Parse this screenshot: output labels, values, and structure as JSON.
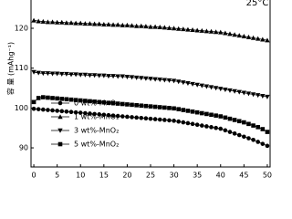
{
  "chart_data": {
    "type": "line",
    "annotation": "25°C",
    "ylabel": "容 量  (mAhg⁻¹)",
    "x": [
      0,
      1,
      2,
      3,
      4,
      5,
      6,
      7,
      8,
      9,
      10,
      11,
      12,
      13,
      14,
      15,
      16,
      17,
      18,
      19,
      20,
      21,
      22,
      23,
      24,
      25,
      26,
      27,
      28,
      29,
      30,
      31,
      32,
      33,
      34,
      35,
      36,
      37,
      38,
      39,
      40,
      41,
      42,
      43,
      44,
      45,
      46,
      47,
      48,
      49,
      50
    ],
    "series": [
      {
        "name": "0 wt%-MnO₂",
        "color": "#000000",
        "marker": "circle",
        "values": [
          99.8,
          99.7,
          99.6,
          99.5,
          99.4,
          99.3,
          99.2,
          99.1,
          99.0,
          98.9,
          98.8,
          98.7,
          98.6,
          98.5,
          98.4,
          98.3,
          98.2,
          98.1,
          98.0,
          97.9,
          97.8,
          97.7,
          97.6,
          97.5,
          97.4,
          97.3,
          97.2,
          97.1,
          97.0,
          96.9,
          96.8,
          96.6,
          96.4,
          96.2,
          96.0,
          95.8,
          95.6,
          95.4,
          95.2,
          95.0,
          94.8,
          94.4,
          94.0,
          93.6,
          93.2,
          92.8,
          92.4,
          92.0,
          91.5,
          91.0,
          90.5
        ]
      },
      {
        "name": "1 wt%-MnO₂",
        "color": "#000000",
        "marker": "triangle-up",
        "values": [
          122.0,
          121.8,
          121.7,
          121.6,
          121.6,
          121.5,
          121.5,
          121.4,
          121.4,
          121.3,
          121.3,
          121.2,
          121.2,
          121.1,
          121.1,
          121.0,
          121.0,
          120.9,
          120.9,
          120.8,
          120.8,
          120.7,
          120.6,
          120.6,
          120.5,
          120.4,
          120.4,
          120.3,
          120.2,
          120.1,
          120.0,
          119.9,
          119.8,
          119.7,
          119.6,
          119.5,
          119.4,
          119.3,
          119.2,
          119.1,
          119.0,
          118.8,
          118.6,
          118.4,
          118.2,
          118.0,
          117.8,
          117.6,
          117.4,
          117.2,
          117.0
        ]
      },
      {
        "name": "3 wt%-MnO₂",
        "color": "#000000",
        "marker": "triangle-down",
        "values": [
          109.0,
          108.8,
          108.7,
          108.7,
          108.6,
          108.6,
          108.5,
          108.5,
          108.4,
          108.4,
          108.3,
          108.3,
          108.2,
          108.2,
          108.1,
          108.1,
          108.0,
          108.0,
          107.9,
          107.9,
          107.8,
          107.7,
          107.6,
          107.5,
          107.4,
          107.3,
          107.2,
          107.1,
          107.0,
          106.9,
          106.8,
          106.6,
          106.4,
          106.2,
          106.0,
          105.8,
          105.6,
          105.4,
          105.2,
          105.0,
          104.8,
          104.6,
          104.4,
          104.2,
          104.0,
          103.8,
          103.6,
          103.4,
          103.2,
          103.0,
          102.8
        ]
      },
      {
        "name": "5 wt%-MnO₂",
        "color": "#000000",
        "marker": "square",
        "values": [
          101.5,
          102.5,
          102.7,
          102.6,
          102.5,
          102.4,
          102.3,
          102.2,
          102.1,
          102.0,
          101.9,
          101.8,
          101.7,
          101.6,
          101.5,
          101.4,
          101.3,
          101.2,
          101.1,
          101.0,
          100.9,
          100.8,
          100.7,
          100.6,
          100.5,
          100.4,
          100.3,
          100.2,
          100.1,
          100.0,
          99.9,
          99.7,
          99.5,
          99.3,
          99.1,
          98.9,
          98.7,
          98.5,
          98.3,
          98.1,
          97.9,
          97.6,
          97.3,
          97.0,
          96.7,
          96.4,
          96.0,
          95.6,
          95.2,
          94.7,
          94.0
        ]
      }
    ],
    "xlim": [
      -0.6,
      50.6
    ],
    "xticks": [
      0,
      5,
      10,
      15,
      20,
      25,
      30,
      35,
      40,
      45,
      50
    ],
    "ylim": [
      85.2,
      127.1
    ],
    "yticks": [
      90,
      100,
      110,
      120
    ],
    "legend": "lower left"
  }
}
